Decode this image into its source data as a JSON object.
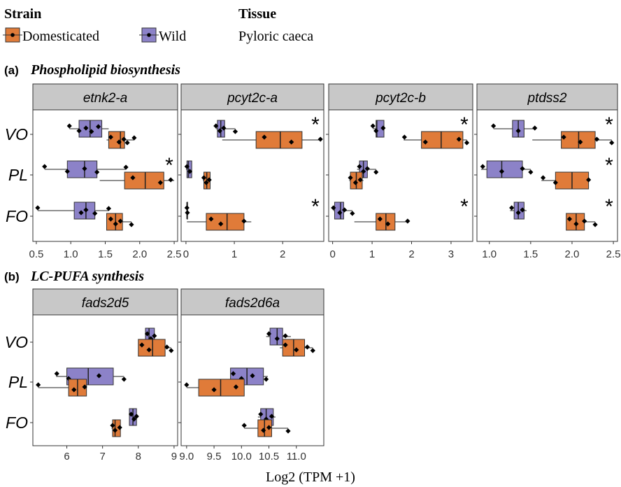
{
  "legend": {
    "strain_title": "Strain",
    "strain_items": [
      {
        "label": "Domesticated",
        "color": "#E07B39"
      },
      {
        "label": "Wild",
        "color": "#8C82C8"
      }
    ],
    "tissue_title": "Tissue",
    "tissue_value": "Pyloric caeca"
  },
  "sections": [
    {
      "tag": "(a)",
      "title": "Phospholipid biosynthesis"
    },
    {
      "tag": "(b)",
      "title": "LC-PUFA synthesis"
    }
  ],
  "x_axis_label": "Log2 (TPM +1)",
  "colors": {
    "strip": "#C8C8C8",
    "box_edge": "#333333",
    "point": "#000000"
  },
  "chart_data": [
    {
      "type": "box",
      "gene": "etnk2-a",
      "categories": [
        "VO",
        "PL",
        "FO"
      ],
      "xlim": [
        0.45,
        2.55
      ],
      "ticks": [
        0.5,
        1.0,
        1.5,
        2.0,
        2.5
      ],
      "tick_labels": [
        "0.5",
        "1.0",
        "1.5",
        "2.0",
        "2.5"
      ],
      "boxes": [
        {
          "cat": "VO",
          "strain": "Wild",
          "min": 0.98,
          "q1": 1.12,
          "median": 1.28,
          "q3": 1.45,
          "max": 1.55,
          "points": [
            0.98,
            1.12,
            1.22,
            1.3,
            1.4
          ]
        },
        {
          "cat": "VO",
          "strain": "Domesticated",
          "min": 1.52,
          "q1": 1.55,
          "median": 1.72,
          "q3": 1.78,
          "max": 1.92,
          "points": [
            1.58,
            1.7,
            1.77,
            1.82,
            1.92
          ]
        },
        {
          "cat": "PL",
          "strain": "Wild",
          "min": 0.62,
          "q1": 0.95,
          "median": 1.2,
          "q3": 1.38,
          "max": 1.8,
          "points": [
            0.62,
            0.95,
            1.2,
            1.38,
            1.8
          ]
        },
        {
          "cat": "PL",
          "strain": "Domesticated",
          "min": 1.42,
          "q1": 1.78,
          "median": 2.08,
          "q3": 2.35,
          "max": 2.5,
          "points": [
            1.9,
            2.3,
            2.45
          ]
        },
        {
          "cat": "FO",
          "strain": "Wild",
          "min": 0.52,
          "q1": 1.05,
          "median": 1.22,
          "q3": 1.35,
          "max": 1.55,
          "points": [
            0.52,
            1.15,
            1.22,
            1.35,
            1.55
          ]
        },
        {
          "cat": "FO",
          "strain": "Domesticated",
          "min": 1.52,
          "q1": 1.52,
          "median": 1.65,
          "q3": 1.75,
          "max": 1.88,
          "points": [
            1.58,
            1.65,
            1.72,
            1.88
          ]
        }
      ],
      "stars": [
        "PL"
      ]
    },
    {
      "type": "box",
      "gene": "pcyt2c-a",
      "categories": [
        "VO",
        "PL",
        "FO"
      ],
      "xlim": [
        -0.1,
        2.85
      ],
      "ticks": [
        0,
        1,
        2
      ],
      "tick_labels": [
        "0",
        "1",
        "2"
      ],
      "boxes": [
        {
          "cat": "VO",
          "strain": "Wild",
          "min": 0.62,
          "q1": 0.65,
          "median": 0.72,
          "q3": 0.8,
          "max": 1.02,
          "points": [
            0.62,
            0.7,
            0.78,
            1.02
          ]
        },
        {
          "cat": "VO",
          "strain": "Domesticated",
          "min": 0.75,
          "q1": 1.45,
          "median": 1.95,
          "q3": 2.4,
          "max": 2.78,
          "points": [
            1.62,
            2.18,
            2.78
          ]
        },
        {
          "cat": "PL",
          "strain": "Wild",
          "min": 0.0,
          "q1": 0.02,
          "median": 0.05,
          "q3": 0.12,
          "max": 0.12,
          "points": [
            0.02,
            0.08
          ]
        },
        {
          "cat": "PL",
          "strain": "Domesticated",
          "min": 0.35,
          "q1": 0.37,
          "median": 0.43,
          "q3": 0.5,
          "max": 0.52,
          "points": [
            0.37,
            0.42,
            0.48
          ]
        },
        {
          "cat": "FO",
          "strain": "Wild",
          "min": 0.02,
          "q1": 0.02,
          "median": 0.02,
          "q3": 0.02,
          "max": 0.04,
          "points": [
            0.02,
            0.03
          ]
        },
        {
          "cat": "FO",
          "strain": "Domesticated",
          "min": 0.02,
          "q1": 0.42,
          "median": 0.85,
          "q3": 1.2,
          "max": 1.35,
          "points": [
            0.52,
            0.72,
            1.2
          ]
        }
      ],
      "stars": [
        "VO",
        "FO"
      ]
    },
    {
      "type": "box",
      "gene": "pcyt2c-b",
      "categories": [
        "VO",
        "PL",
        "FO"
      ],
      "xlim": [
        -0.1,
        3.55
      ],
      "ticks": [
        0,
        1,
        2,
        3
      ],
      "tick_labels": [
        "0",
        "1",
        "2",
        "3"
      ],
      "boxes": [
        {
          "cat": "VO",
          "strain": "Wild",
          "min": 1.02,
          "q1": 1.1,
          "median": 1.12,
          "q3": 1.3,
          "max": 1.3,
          "points": [
            1.02,
            1.1,
            1.28
          ]
        },
        {
          "cat": "VO",
          "strain": "Domesticated",
          "min": 1.8,
          "q1": 2.25,
          "median": 2.75,
          "q3": 3.3,
          "max": 3.4,
          "points": [
            1.82,
            2.35,
            3.2,
            3.4
          ]
        },
        {
          "cat": "PL",
          "strain": "Wild",
          "min": 0.62,
          "q1": 0.68,
          "median": 0.78,
          "q3": 0.88,
          "max": 1.1,
          "points": [
            0.68,
            0.78,
            0.88,
            1.1
          ]
        },
        {
          "cat": "PL",
          "strain": "Domesticated",
          "min": 0.42,
          "q1": 0.45,
          "median": 0.6,
          "q3": 0.75,
          "max": 0.78,
          "points": [
            0.45,
            0.58,
            0.7
          ]
        },
        {
          "cat": "FO",
          "strain": "Wild",
          "min": 0.02,
          "q1": 0.05,
          "median": 0.2,
          "q3": 0.28,
          "max": 0.5,
          "points": [
            0.02,
            0.18,
            0.3,
            0.5
          ]
        },
        {
          "cat": "FO",
          "strain": "Domesticated",
          "min": 0.55,
          "q1": 1.1,
          "median": 1.35,
          "q3": 1.58,
          "max": 1.9,
          "points": [
            1.2,
            1.4,
            1.9
          ]
        }
      ],
      "stars": [
        "VO",
        "FO"
      ]
    },
    {
      "type": "box",
      "gene": "ptdss2",
      "categories": [
        "VO",
        "PL",
        "FO"
      ],
      "xlim": [
        0.85,
        2.55
      ],
      "ticks": [
        1.0,
        1.5,
        2.0,
        2.5
      ],
      "tick_labels": [
        "1.0",
        "1.5",
        "2.0",
        "2.5"
      ],
      "boxes": [
        {
          "cat": "VO",
          "strain": "Wild",
          "min": 1.05,
          "q1": 1.28,
          "median": 1.35,
          "q3": 1.42,
          "max": 1.55,
          "points": [
            1.05,
            1.35,
            1.55
          ]
        },
        {
          "cat": "VO",
          "strain": "Domesticated",
          "min": 1.52,
          "q1": 1.87,
          "median": 2.08,
          "q3": 2.28,
          "max": 2.48,
          "points": [
            1.9,
            2.1,
            2.3,
            2.48
          ]
        },
        {
          "cat": "PL",
          "strain": "Wild",
          "min": 0.9,
          "q1": 0.97,
          "median": 1.15,
          "q3": 1.4,
          "max": 1.5,
          "points": [
            0.92,
            1.15,
            1.4,
            1.5
          ]
        },
        {
          "cat": "PL",
          "strain": "Domesticated",
          "min": 1.63,
          "q1": 1.8,
          "median": 2.0,
          "q3": 2.2,
          "max": 2.22,
          "points": [
            1.65,
            1.8,
            2.2
          ]
        },
        {
          "cat": "FO",
          "strain": "Wild",
          "min": 1.25,
          "q1": 1.3,
          "median": 1.35,
          "q3": 1.42,
          "max": 1.45,
          "points": [
            1.27,
            1.35,
            1.4
          ]
        },
        {
          "cat": "FO",
          "strain": "Domesticated",
          "min": 1.93,
          "q1": 1.93,
          "median": 2.05,
          "q3": 2.15,
          "max": 2.28,
          "points": [
            1.97,
            2.05,
            2.15,
            2.28
          ]
        }
      ],
      "stars": [
        "VO",
        "PL",
        "FO"
      ]
    },
    {
      "type": "box",
      "gene": "fads2d5",
      "categories": [
        "VO",
        "PL",
        "FO"
      ],
      "xlim": [
        5.05,
        9.1
      ],
      "ticks": [
        6,
        7,
        8,
        9
      ],
      "tick_labels": [
        "6",
        "7",
        "8",
        "9"
      ],
      "boxes": [
        {
          "cat": "VO",
          "strain": "Wild",
          "min": 8.2,
          "q1": 8.2,
          "median": 8.3,
          "q3": 8.45,
          "max": 8.45,
          "points": [
            8.25,
            8.35,
            8.45
          ]
        },
        {
          "cat": "VO",
          "strain": "Domesticated",
          "min": 8.0,
          "q1": 8.0,
          "median": 8.4,
          "q3": 8.75,
          "max": 8.92,
          "points": [
            8.1,
            8.3,
            8.8,
            8.92
          ]
        },
        {
          "cat": "PL",
          "strain": "Wild",
          "min": 5.7,
          "q1": 6.0,
          "median": 6.6,
          "q3": 7.3,
          "max": 7.6,
          "points": [
            5.72,
            6.05,
            6.9,
            7.6
          ]
        },
        {
          "cat": "PL",
          "strain": "Domesticated",
          "min": 5.2,
          "q1": 6.05,
          "median": 6.3,
          "q3": 6.55,
          "max": 6.55,
          "points": [
            5.2,
            6.2,
            6.5
          ]
        },
        {
          "cat": "FO",
          "strain": "Wild",
          "min": 7.75,
          "q1": 7.75,
          "median": 7.85,
          "q3": 7.95,
          "max": 8.0,
          "points": [
            7.8,
            7.88,
            7.95
          ]
        },
        {
          "cat": "FO",
          "strain": "Domesticated",
          "min": 7.25,
          "q1": 7.28,
          "median": 7.35,
          "q3": 7.5,
          "max": 7.5,
          "points": [
            7.28,
            7.35,
            7.48
          ]
        }
      ],
      "stars": []
    },
    {
      "type": "box",
      "gene": "fads2d6a",
      "categories": [
        "VO",
        "PL",
        "FO"
      ],
      "xlim": [
        8.9,
        11.5
      ],
      "ticks": [
        9.0,
        9.5,
        10.0,
        10.5,
        11.0
      ],
      "tick_labels": [
        "9.0",
        "9.5",
        "10.0",
        "10.5",
        "11.0"
      ],
      "boxes": [
        {
          "cat": "VO",
          "strain": "Wild",
          "min": 10.45,
          "q1": 10.52,
          "median": 10.65,
          "q3": 10.75,
          "max": 10.9,
          "points": [
            10.5,
            10.65,
            10.8
          ]
        },
        {
          "cat": "VO",
          "strain": "Domesticated",
          "min": 10.7,
          "q1": 10.75,
          "median": 10.95,
          "q3": 11.15,
          "max": 11.3,
          "points": [
            10.8,
            11.0,
            11.2,
            11.3
          ]
        },
        {
          "cat": "PL",
          "strain": "Wild",
          "min": 9.8,
          "q1": 9.8,
          "median": 10.1,
          "q3": 10.4,
          "max": 10.48,
          "points": [
            9.85,
            10.0,
            10.2,
            10.45
          ]
        },
        {
          "cat": "PL",
          "strain": "Domesticated",
          "min": 9.0,
          "q1": 9.22,
          "median": 9.62,
          "q3": 10.05,
          "max": 10.05,
          "points": [
            9.0,
            9.5,
            9.9
          ]
        },
        {
          "cat": "FO",
          "strain": "Wild",
          "min": 10.3,
          "q1": 10.35,
          "median": 10.45,
          "q3": 10.58,
          "max": 10.62,
          "points": [
            10.35,
            10.45,
            10.55
          ]
        },
        {
          "cat": "FO",
          "strain": "Domesticated",
          "min": 10.05,
          "q1": 10.3,
          "median": 10.42,
          "q3": 10.55,
          "max": 10.85,
          "points": [
            10.05,
            10.4,
            10.5,
            10.85
          ]
        }
      ],
      "stars": []
    }
  ]
}
